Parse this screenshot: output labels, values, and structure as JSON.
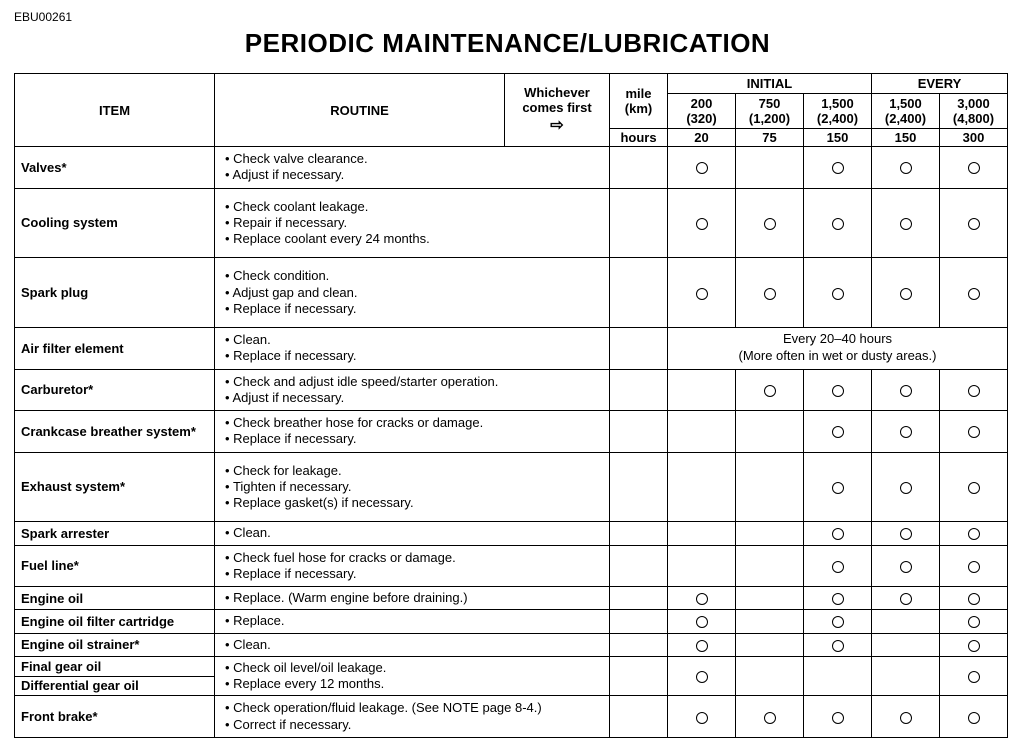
{
  "doc_id": "EBU00261",
  "title": "PERIODIC MAINTENANCE/LUBRICATION",
  "header": {
    "item": "ITEM",
    "routine": "ROUTINE",
    "whichever_l1": "Whichever",
    "whichever_l2": "comes first",
    "whichever_arrow": "⇨",
    "initial": "INITIAL",
    "every": "EVERY",
    "unit_mile": "mile",
    "unit_km": "(km)",
    "unit_hours": "hours",
    "i1_mile": "200",
    "i1_km": "(320)",
    "i1_hrs": "20",
    "i2_mile": "750",
    "i2_km": "(1,200)",
    "i2_hrs": "75",
    "i3_mile": "1,500",
    "i3_km": "(2,400)",
    "i3_hrs": "150",
    "e1_mile": "1,500",
    "e1_km": "(2,400)",
    "e1_hrs": "150",
    "e2_mile": "3,000",
    "e2_km": "(4,800)",
    "e2_hrs": "300"
  },
  "air_filter_note_l1": "Every 20–40 hours",
  "air_filter_note_l2": "(More often in wet or dusty areas.)",
  "rows": [
    {
      "name": "Valves*",
      "routine": [
        "Check valve clearance.",
        "Adjust if necessary."
      ],
      "marks": [
        true,
        false,
        true,
        true,
        true
      ]
    },
    {
      "name": "Cooling system",
      "routine": [
        "Check coolant leakage.",
        "Repair if necessary.",
        "Replace coolant every 24 months."
      ],
      "marks": [
        true,
        true,
        true,
        true,
        true
      ]
    },
    {
      "name": "Spark plug",
      "routine": [
        "Check condition.",
        "Adjust gap and clean.",
        "Replace if necessary."
      ],
      "marks": [
        true,
        true,
        true,
        true,
        true
      ]
    },
    {
      "name": "Air filter element",
      "routine": [
        "Clean.",
        "Replace if necessary."
      ],
      "span_note": true
    },
    {
      "name": "Carburetor*",
      "routine": [
        "Check and adjust idle speed/starter operation.",
        "Adjust if necessary."
      ],
      "marks": [
        false,
        true,
        true,
        true,
        true
      ]
    },
    {
      "name": "Crankcase breather system*",
      "routine": [
        "Check breather hose for cracks or damage.",
        "Replace if necessary."
      ],
      "marks": [
        false,
        false,
        true,
        true,
        true
      ]
    },
    {
      "name": "Exhaust system*",
      "routine": [
        "Check for leakage.",
        "Tighten if necessary.",
        "Replace gasket(s) if necessary."
      ],
      "marks": [
        false,
        false,
        true,
        true,
        true
      ]
    },
    {
      "name": "Spark arrester",
      "routine": [
        "Clean."
      ],
      "marks": [
        false,
        false,
        true,
        true,
        true
      ]
    },
    {
      "name": "Fuel line*",
      "routine": [
        "Check fuel hose for cracks or damage.",
        "Replace if necessary."
      ],
      "marks": [
        false,
        false,
        true,
        true,
        true
      ]
    },
    {
      "name": "Engine oil",
      "routine": [
        "Replace. (Warm engine before draining.)"
      ],
      "marks": [
        true,
        false,
        true,
        true,
        true
      ]
    },
    {
      "name": "Engine oil filter cartridge",
      "routine": [
        "Replace."
      ],
      "marks": [
        true,
        false,
        true,
        false,
        true
      ]
    },
    {
      "name": "Engine oil strainer*",
      "routine": [
        "Clean."
      ],
      "marks": [
        true,
        false,
        true,
        false,
        true
      ]
    }
  ],
  "gear_oil": {
    "name1": "Final gear oil",
    "name2": "Differential gear oil",
    "routine": [
      "Check oil level/oil leakage.",
      "Replace every 12 months."
    ],
    "marks": [
      true,
      false,
      false,
      false,
      true
    ]
  },
  "front_brake": {
    "name": "Front brake*",
    "routine": [
      "Check operation/fluid leakage. (See NOTE page 8-4.)",
      "Correct if necessary."
    ],
    "marks": [
      true,
      true,
      true,
      true,
      true
    ]
  }
}
